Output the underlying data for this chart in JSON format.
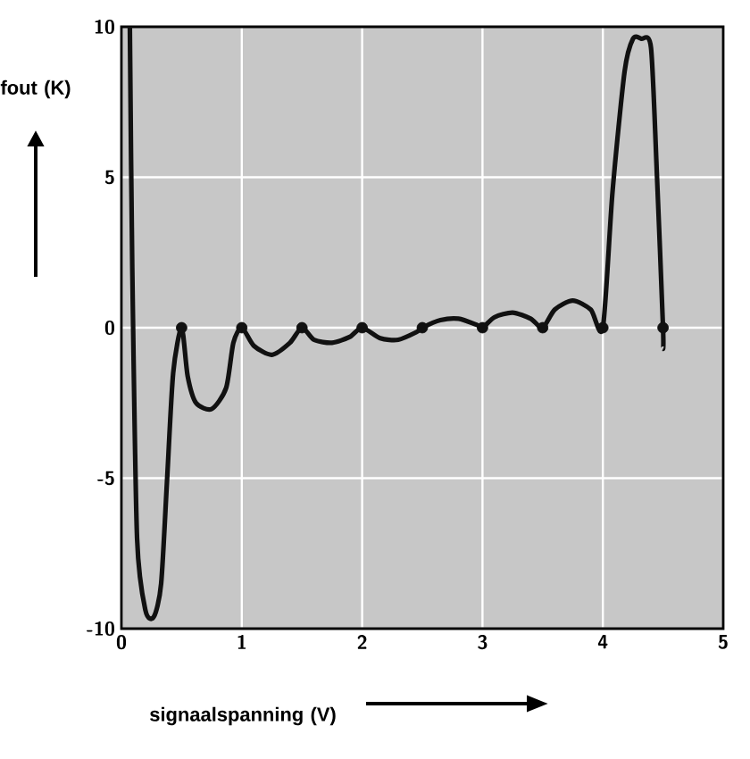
{
  "chart_data": {
    "type": "line",
    "xlabel": "signaalspanning (V)",
    "ylabel": "fout (K)",
    "xlim": [
      0,
      5
    ],
    "ylim": [
      -10,
      10
    ],
    "xticks": [
      0,
      1,
      2,
      3,
      4,
      5
    ],
    "yticks": [
      -10,
      -5,
      0,
      5,
      10
    ],
    "grid": true,
    "series": [
      {
        "color": "#111111",
        "marker": "none",
        "x": [
          0.07,
          0.09,
          0.13,
          0.2,
          0.27,
          0.33,
          0.38,
          0.43,
          0.5,
          0.55,
          0.62,
          0.75,
          0.87,
          0.93,
          1.0,
          1.1,
          1.25,
          1.4,
          1.5,
          1.6,
          1.75,
          1.9,
          2.0,
          2.15,
          2.3,
          2.45,
          2.5,
          2.65,
          2.8,
          2.95,
          3.0,
          3.1,
          3.25,
          3.4,
          3.5,
          3.6,
          3.75,
          3.9,
          4.0,
          4.08,
          4.18,
          4.25,
          4.32,
          4.4,
          4.45,
          4.5,
          4.5
        ],
        "values": [
          10,
          2,
          -7,
          -9.4,
          -9.6,
          -8.5,
          -5,
          -1.5,
          0,
          -1.6,
          -2.5,
          -2.7,
          -2,
          -0.5,
          0,
          -0.6,
          -0.9,
          -0.5,
          0,
          -0.4,
          -0.5,
          -0.3,
          0,
          -0.35,
          -0.4,
          -0.15,
          0,
          0.25,
          0.3,
          0.1,
          0,
          0.35,
          0.5,
          0.3,
          0,
          0.6,
          0.9,
          0.6,
          0,
          4.5,
          8.5,
          9.6,
          9.6,
          9.3,
          5,
          0,
          -0.7
        ]
      },
      {
        "type": "scatter",
        "color": "#111111",
        "marker": "circle",
        "x": [
          0.5,
          1,
          1.5,
          2,
          2.5,
          3,
          3.5,
          4,
          4.5
        ],
        "values": [
          0,
          0,
          0,
          0,
          0,
          0,
          0,
          0,
          0
        ]
      }
    ]
  }
}
